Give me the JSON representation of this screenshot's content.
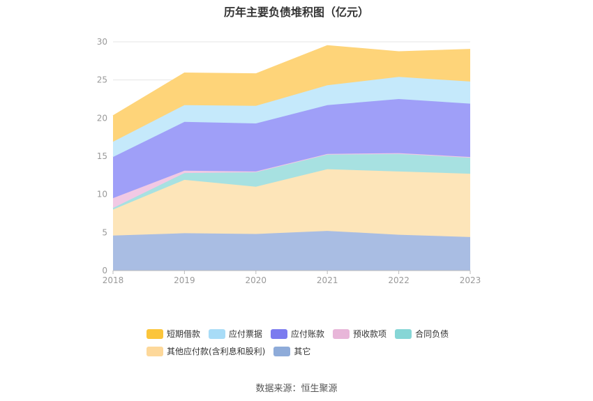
{
  "title": "历年主要负债堆积图（亿元）",
  "source": "数据来源：恒生聚源",
  "chart_data": {
    "type": "area",
    "stacked": true,
    "categories": [
      "2018",
      "2019",
      "2020",
      "2021",
      "2022",
      "2023"
    ],
    "ylim": [
      0,
      30
    ],
    "yticks": [
      0,
      5,
      10,
      15,
      20,
      25,
      30
    ],
    "grid": true,
    "legend_position": "bottom",
    "series": [
      {
        "name": "其它",
        "color": "#a9bde3",
        "values": [
          4.6,
          4.9,
          4.8,
          5.2,
          4.7,
          4.4
        ]
      },
      {
        "name": "其他应付款(含利息和股利)",
        "color": "#fde5b9",
        "values": [
          3.4,
          7.0,
          6.2,
          8.1,
          8.3,
          8.3
        ]
      },
      {
        "name": "合同负债",
        "color": "#a7e1e1",
        "values": [
          0.2,
          0.9,
          1.9,
          1.9,
          2.3,
          2.1
        ]
      },
      {
        "name": "预收款项",
        "color": "#f1c9e4",
        "values": [
          1.3,
          0.3,
          0.1,
          0.1,
          0.1,
          0.1
        ]
      },
      {
        "name": "应付账款",
        "color": "#9f9ff8",
        "values": [
          5.4,
          6.4,
          6.3,
          6.4,
          7.1,
          7.0
        ]
      },
      {
        "name": "应付票据",
        "color": "#c5e9fb",
        "values": [
          2.0,
          2.2,
          2.3,
          2.6,
          2.9,
          2.9
        ]
      },
      {
        "name": "短期借款",
        "color": "#fed479",
        "values": [
          3.4,
          4.2,
          4.2,
          5.2,
          3.3,
          4.2
        ]
      }
    ],
    "legend_colors": {
      "短期借款": "#fbc53b",
      "应付票据": "#a8dcf7",
      "应付账款": "#7b7bef",
      "预收款项": "#e8b6d9",
      "合同负债": "#86d6d6",
      "其他应付款(含利息和股利)": "#fdd89a",
      "其它": "#8eabd9"
    },
    "legend_rows": [
      [
        "短期借款",
        "应付票据",
        "应付账款",
        "预收款项",
        "合同负债"
      ],
      [
        "其他应付款(含利息和股利)",
        "其它"
      ]
    ]
  }
}
